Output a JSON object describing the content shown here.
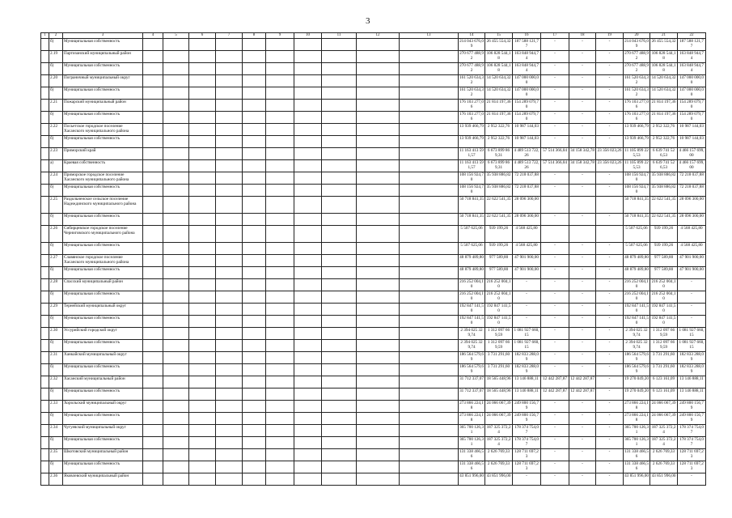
{
  "page_number": "3",
  "header": [
    "1",
    "2",
    "3",
    "4",
    "5",
    "6",
    "7",
    "8",
    "9",
    "10",
    "11",
    "12",
    "13",
    "14",
    "15",
    "16",
    "17",
    "18",
    "19",
    "20",
    "21",
    "22"
  ],
  "rows": [
    {
      "num": "б)",
      "name": "Муниципальная собственность",
      "v": [
        "214 043 676,09",
        "26 455 554,32",
        "187 588 121,77",
        "-",
        "-",
        "-",
        "214 043 676,09",
        "26 455 554,32",
        "187 588 121,77"
      ]
    },
    {
      "num": "2.19",
      "name": "Партизанский муниципальный район",
      "v": [
        "270 677 488,92",
        "106 828 544,18",
        "163 848 944,74",
        "-",
        "-",
        "-",
        "270 677 488,92",
        "106 828 544,18",
        "163 848 944,74"
      ]
    },
    {
      "num": "б)",
      "name": "Муниципальная собственность",
      "v": [
        "270 677 488,92",
        "106 828 544,18",
        "163 848 944,74",
        "-",
        "-",
        "-",
        "270 677 488,92",
        "106 828 544,18",
        "163 848 944,74"
      ]
    },
    {
      "num": "2.20",
      "name": "Пограничный муниципальный округ",
      "v": [
        "161 520 634,32",
        "14 520 634,32",
        "147 000 000,00",
        "-",
        "-",
        "-",
        "161 520 634,32",
        "14 520 634,32",
        "147 000 000,00"
      ]
    },
    {
      "num": "б)",
      "name": "Муниципальная собственность",
      "v": [
        "161 520 634,32",
        "14 520 634,32",
        "147 000 000,00",
        "-",
        "-",
        "-",
        "161 520 634,32",
        "14 520 634,32",
        "147 000 000,00"
      ]
    },
    {
      "num": "2.21",
      "name": "Пожарский муниципальный район",
      "v": [
        "176 103 277,06",
        "21 814 197,36",
        "154 289 079,70",
        "-",
        "-",
        "-",
        "176 103 277,06",
        "21 814 197,36",
        "154 289 079,70"
      ]
    },
    {
      "num": "б)",
      "name": "Муниципальная собственность",
      "v": [
        "176 103 277,06",
        "21 814 197,36",
        "154 289 079,70",
        "-",
        "-",
        "-",
        "176 103 277,06",
        "21 814 197,36",
        "154 289 079,70"
      ]
    },
    {
      "num": "2.22",
      "name": "Посьетское городское поселение Хасанского муниципального района",
      "v": [
        "13 939 466,79",
        "2 952 322,76",
        "10 987 144,03",
        "-",
        "-",
        "-",
        "13 939 466,79",
        "2 952 322,76",
        "10 987 144,03"
      ]
    },
    {
      "num": "б)",
      "name": "Муниципальная собственность",
      "v": [
        "13 939 466,79",
        "2 952 322,76",
        "10 987 144,03",
        "-",
        "-",
        "-",
        "13 939 466,79",
        "2 952 322,76",
        "10 987 144,03"
      ]
    },
    {
      "num": "2.23",
      "name": "Приморский край",
      "v": [
        "11 163 413 591,57",
        "6 673 899 869,31",
        "4 489 513 722,26",
        "57 514 366,04",
        "34 158 342,78",
        "23 356 023,26",
        "11 105 899 225,53",
        "6 639 741 526,53",
        "4 466 157 699,00"
      ]
    },
    {
      "num": "а)",
      "name": "Краевая собственность",
      "v": [
        "11 163 413 591,57",
        "6 673 899 869,31",
        "4 489 513 722,26",
        "57 514 366,04",
        "34 158 342,78",
        "23 356 023,26",
        "11 105 899 225,53",
        "6 639 741 526,53",
        "4 466 157 699,00"
      ]
    },
    {
      "num": "2.24",
      "name": "Приморское городское поселение Хасанского муниципального района",
      "v": [
        "108 156 924,70",
        "35 938 886,82",
        "72 218 037,88",
        "-",
        "-",
        "-",
        "108 156 924,70",
        "35 938 886,82",
        "72 218 037,88"
      ]
    },
    {
      "num": "б)",
      "name": "Муниципальная собственность",
      "v": [
        "108 156 924,70",
        "35 938 886,82",
        "72 218 037,88",
        "-",
        "-",
        "-",
        "108 156 924,70",
        "35 938 886,82",
        "72 218 037,88"
      ]
    },
    {
      "num": "2.25",
      "name": "Раздольненское сельское поселение Надеждинского муниципального района",
      "tall": true,
      "v": [
        "50 718 841,35",
        "22 622 541,35",
        "28 096 300,00",
        "",
        "",
        "",
        "50 718 841,35",
        "22 622 541,35",
        "28 096 300,00"
      ]
    },
    {
      "num": "б)",
      "name": "Муниципальная собственность",
      "v": [
        "50 718 841,35",
        "22 622 541,35",
        "28 096 300,00",
        "-",
        "-",
        "-",
        "50 718 841,35",
        "22 622 541,35",
        "28 096 300,00"
      ]
    },
    {
      "num": "2.26",
      "name": "Сибирцевское городское поселение Черниговского муниципального района",
      "tall": true,
      "v": [
        "5 507 625,06",
        "939 199,26",
        "4 568 425,80",
        "",
        "",
        "",
        "5 507 625,06",
        "939 199,26",
        "4 568 425,80"
      ]
    },
    {
      "num": "б)",
      "name": "Муниципальная собственность",
      "v": [
        "5 507 625,06",
        "939 199,26",
        "4 568 425,80",
        "-",
        "-",
        "-",
        "5 507 625,06",
        "939 199,26",
        "4 568 425,80"
      ]
    },
    {
      "num": "2.27",
      "name": "Славянское городское поселение Хасанского муниципального района",
      "v": [
        "48 879 489,80",
        "977 589,80",
        "47 901 900,00",
        "-",
        "-",
        "-",
        "48 879 489,80",
        "977 589,80",
        "47 901 900,00"
      ]
    },
    {
      "num": "б)",
      "name": "Муниципальная собственность",
      "v": [
        "48 879 489,80",
        "977 589,80",
        "47 901 900,00",
        "-",
        "-",
        "-",
        "48 879 489,80",
        "977 589,80",
        "47 901 900,00"
      ]
    },
    {
      "num": "2.28",
      "name": "Спасский муниципальный район",
      "v": [
        "216 252 004,10",
        "216 252 004,10",
        "-",
        "-",
        "-",
        "-",
        "216 252 004,10",
        "216 252 004,10",
        "-"
      ]
    },
    {
      "num": "б)",
      "name": "Муниципальная собственность",
      "v": [
        "216 252 004,10",
        "216 252 004,10",
        "-",
        "-",
        "-",
        "-",
        "216 252 004,10",
        "216 252 004,10",
        "-"
      ]
    },
    {
      "num": "2.29",
      "name": "Тернейский муниципальный округ",
      "v": [
        "192 847 141,50",
        "192 847 141,50",
        "-",
        "-",
        "-",
        "-",
        "192 847 141,50",
        "192 847 141,50",
        "-"
      ]
    },
    {
      "num": "б)",
      "name": "Муниципальная собственность",
      "v": [
        "192 847 141,50",
        "192 847 141,50",
        "-",
        "-",
        "-",
        "-",
        "192 847 141,50",
        "192 847 141,50",
        "-"
      ]
    },
    {
      "num": "2.30",
      "name": "Уссурийский городской округ",
      "v": [
        "2 394 025 329,74",
        "1 312 097 669,59",
        "1 081 927 660,15",
        "-",
        "-",
        "-",
        "2 394 025 329,74",
        "1 312 097 669,59",
        "1 081 927 660,15"
      ]
    },
    {
      "num": "б)",
      "name": "Муниципальная собственность",
      "v": [
        "2 394 025 329,74",
        "1 312 097 669,59",
        "1 081 927 660,15",
        "-",
        "-",
        "-",
        "2 394 025 329,74",
        "1 312 097 669,59",
        "1 081 927 660,15"
      ]
    },
    {
      "num": "2.31",
      "name": "Ханкайский муниципальный округ",
      "v": [
        "186 564 579,69",
        "3 731 291,60",
        "182 833 288,09",
        "-",
        "-",
        "-",
        "186 564 579,69",
        "3 731 291,60",
        "182 833 288,09"
      ]
    },
    {
      "num": "б)",
      "name": "Муниципальная собственность",
      "v": [
        "186 564 579,69",
        "3 731 291,60",
        "182 833 288,09",
        "-",
        "-",
        "-",
        "186 564 579,69",
        "3 731 291,60",
        "182 833 288,09"
      ]
    },
    {
      "num": "2.32",
      "name": "Хасанский муниципальный район",
      "v": [
        "31 712 337,07",
        "18 565 448,96",
        "13 146 888,11",
        "12 442 287,87",
        "12 442 287,87",
        "-",
        "19 270 049,20",
        "6 123 161,09",
        "13 146 888,11"
      ]
    },
    {
      "num": "б)",
      "name": "Муниципальная собственность",
      "v": [
        "31 712 337,07",
        "18 565 448,96",
        "13 146 888,11",
        "12 442 287,87",
        "12 442 287,87",
        "-",
        "19 270 049,20",
        "6 123 161,09",
        "13 146 888,11"
      ]
    },
    {
      "num": "2.33",
      "name": "Хорольский муниципальный округ",
      "v": [
        "273 866 224,18",
        "24 066 067,39",
        "249 800 156,79",
        "-",
        "-",
        "-",
        "273 866 224,18",
        "24 066 067,39",
        "249 800 156,79"
      ]
    },
    {
      "num": "б)",
      "name": "Муниципальная собственность",
      "v": [
        "273 866 224,18",
        "24 066 067,39",
        "249 800 156,79",
        "-",
        "-",
        "-",
        "273 866 224,18",
        "24 066 067,39",
        "249 800 156,79"
      ]
    },
    {
      "num": "2.34",
      "name": "Чугуевский муниципальный округ",
      "v": [
        "365 700 126,31",
        "187 325 372,24",
        "178 374 754,07",
        "-",
        "-",
        "-",
        "365 700 126,31",
        "187 325 372,24",
        "178 374 754,07"
      ]
    },
    {
      "num": "б)",
      "name": "Муниципальная собственность",
      "v": [
        "365 700 126,31",
        "187 325 372,24",
        "178 374 754,07",
        "-",
        "-",
        "-",
        "365 700 126,31",
        "187 325 372,24",
        "178 374 754,07"
      ]
    },
    {
      "num": "2.35",
      "name": "Шкотовский муниципальный район",
      "v": [
        "131 338 466,56",
        "2 626 769,33",
        "128 711 697,23",
        "-",
        "-",
        "-",
        "131 338 466,56",
        "2 626 769,33",
        "128 711 697,23"
      ]
    },
    {
      "num": "б)",
      "name": "Муниципальная собственность",
      "v": [
        "131 338 466,56",
        "2 626 769,33",
        "128 711 697,23",
        "-",
        "-",
        "-",
        "131 338 466,56",
        "2 626 769,33",
        "128 711 697,23"
      ]
    },
    {
      "num": "2.36",
      "name": "Яковлевский муниципальный район",
      "v": [
        "43 851 996,00",
        "43 851 996,00",
        "-",
        "-",
        "-",
        "-",
        "43 851 996,00",
        "43 851 996,00",
        "-"
      ]
    }
  ]
}
